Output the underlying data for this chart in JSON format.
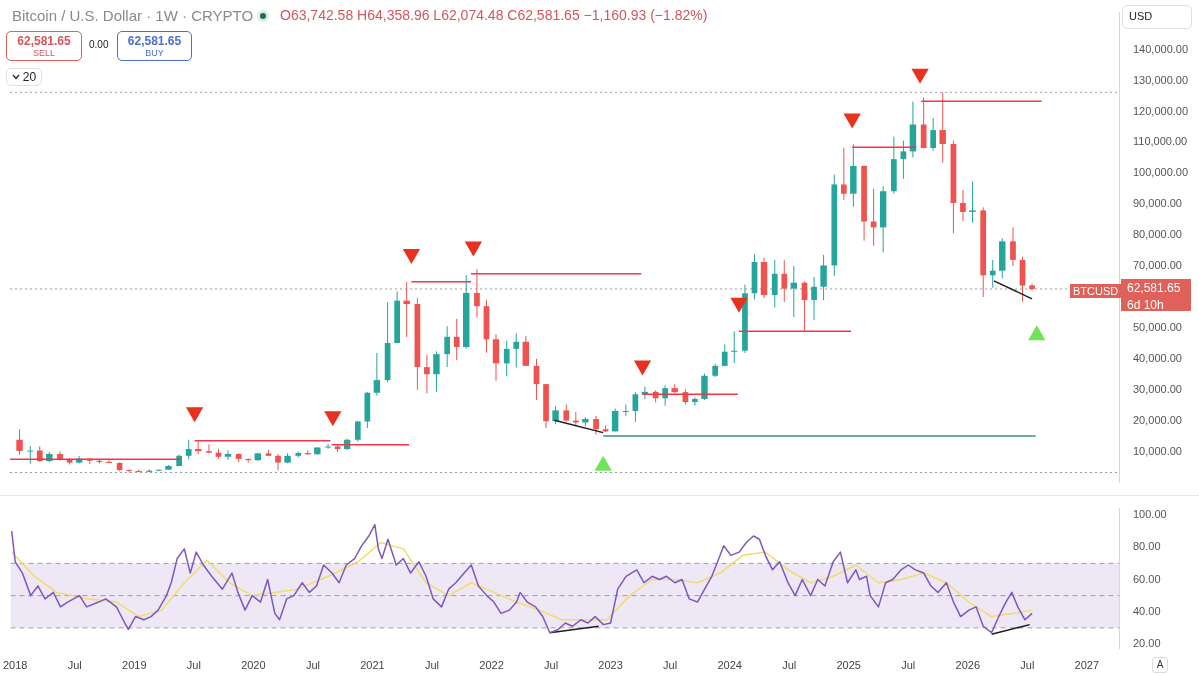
{
  "chart_data": [
    {
      "type": "candlestick",
      "title": "Bitcoin / U.S. Dollar · 1W · CRYPTO",
      "subtitle": "O63,742.58 H64,358.96 L62,074.48 C62,581.65 −1,160.93 (−1.82%)",
      "annotations": [
        "62,581.65",
        "SELL",
        "0.00",
        "62,581.65",
        "BUY",
        "20",
        "USD",
        "BTCUSD",
        "6d 10h"
      ],
      "x": [
        2018.04,
        2018.13,
        2018.21,
        2018.29,
        2018.38,
        2018.46,
        2018.54,
        2018.63,
        2018.71,
        2018.79,
        2018.88,
        2018.96,
        2019.04,
        2019.13,
        2019.21,
        2019.29,
        2019.38,
        2019.46,
        2019.54,
        2019.63,
        2019.71,
        2019.79,
        2019.88,
        2019.96,
        2020.04,
        2020.13,
        2020.21,
        2020.29,
        2020.38,
        2020.46,
        2020.54,
        2020.63,
        2020.71,
        2020.79,
        2020.88,
        2020.96,
        2021.04,
        2021.13,
        2021.21,
        2021.29,
        2021.38,
        2021.46,
        2021.54,
        2021.63,
        2021.71,
        2021.79,
        2021.88,
        2021.96,
        2022.04,
        2022.13,
        2022.21,
        2022.29,
        2022.38,
        2022.46,
        2022.54,
        2022.63,
        2022.71,
        2022.79,
        2022.88,
        2022.96,
        2023.04,
        2023.13,
        2023.21,
        2023.29,
        2023.38,
        2023.46,
        2023.54,
        2023.63,
        2023.71,
        2023.79,
        2023.88,
        2023.96,
        2024.04,
        2024.13,
        2024.21,
        2024.29,
        2024.38,
        2024.46,
        2024.54,
        2024.63,
        2024.71,
        2024.79,
        2024.88,
        2024.96,
        2025.04,
        2025.13,
        2025.21,
        2025.29,
        2025.38,
        2025.46,
        2025.54,
        2025.63,
        2025.71,
        2025.79,
        2025.88,
        2025.96,
        2026.04,
        2026.13,
        2026.21,
        2026.29,
        2026.38,
        2026.46,
        2026.54
      ],
      "ohlc": [
        [
          13800,
          17200,
          9000,
          10200
        ],
        [
          10200,
          11800,
          6000,
          10300
        ],
        [
          10300,
          11700,
          6600,
          6900
        ],
        [
          6900,
          9800,
          6500,
          9200
        ],
        [
          9200,
          10000,
          7100,
          7500
        ],
        [
          7500,
          7800,
          5800,
          6400
        ],
        [
          6400,
          8500,
          6100,
          7700
        ],
        [
          7700,
          7800,
          5900,
          7000
        ],
        [
          7000,
          7400,
          6100,
          6600
        ],
        [
          6600,
          7600,
          6200,
          6300
        ],
        [
          6300,
          6500,
          3600,
          4000
        ],
        [
          4000,
          4200,
          3200,
          3700
        ],
        [
          3700,
          4100,
          3400,
          3400
        ],
        [
          3400,
          4200,
          3400,
          3800
        ],
        [
          3800,
          4200,
          3700,
          4100
        ],
        [
          4100,
          5600,
          4100,
          5300
        ],
        [
          5300,
          9000,
          5300,
          8600
        ],
        [
          8600,
          13800,
          7500,
          10800
        ],
        [
          10800,
          13200,
          9100,
          10100
        ],
        [
          10100,
          12300,
          9400,
          9600
        ],
        [
          9600,
          10900,
          7700,
          8300
        ],
        [
          8300,
          10400,
          7300,
          9200
        ],
        [
          9200,
          9500,
          6500,
          7600
        ],
        [
          7600,
          7700,
          6400,
          7200
        ],
        [
          7200,
          9600,
          6900,
          9400
        ],
        [
          9400,
          10500,
          8500,
          8600
        ],
        [
          8600,
          9200,
          3900,
          6400
        ],
        [
          6400,
          9400,
          6200,
          8600
        ],
        [
          8600,
          10000,
          8100,
          9500
        ],
        [
          9500,
          10400,
          8900,
          9100
        ],
        [
          9100,
          11400,
          8900,
          11300
        ],
        [
          11300,
          12500,
          10900,
          11600
        ],
        [
          11600,
          12100,
          9900,
          10800
        ],
        [
          10800,
          14100,
          10400,
          13800
        ],
        [
          13800,
          19900,
          13200,
          19700
        ],
        [
          19700,
          29300,
          17600,
          29000
        ],
        [
          29000,
          41900,
          28100,
          33100
        ],
        [
          33100,
          58300,
          32400,
          45100
        ],
        [
          45100,
          61800,
          45000,
          58800
        ],
        [
          58800,
          64900,
          47000,
          57700
        ],
        [
          57700,
          59600,
          30000,
          37300
        ],
        [
          37300,
          41300,
          28800,
          35000
        ],
        [
          35000,
          42400,
          29300,
          41500
        ],
        [
          41500,
          50500,
          37300,
          47100
        ],
        [
          47100,
          52900,
          39600,
          43800
        ],
        [
          43800,
          67000,
          43300,
          61300
        ],
        [
          61300,
          69000,
          53300,
          57000
        ],
        [
          57000,
          59100,
          42000,
          46300
        ],
        [
          46300,
          47900,
          32900,
          38500
        ],
        [
          38500,
          45800,
          34300,
          43200
        ],
        [
          43200,
          48200,
          37200,
          45500
        ],
        [
          45500,
          47400,
          37700,
          37700
        ],
        [
          37700,
          40000,
          26700,
          31800
        ],
        [
          31800,
          31900,
          17600,
          19800
        ],
        [
          19800,
          24700,
          18800,
          23300
        ],
        [
          23300,
          25200,
          19600,
          20000
        ],
        [
          20000,
          22800,
          18100,
          19400
        ],
        [
          19400,
          21100,
          18200,
          20500
        ],
        [
          20500,
          21500,
          15500,
          17200
        ],
        [
          17200,
          18400,
          16300,
          16500
        ],
        [
          16500,
          23900,
          16500,
          23100
        ],
        [
          23100,
          25200,
          21400,
          23100
        ],
        [
          23100,
          29200,
          19600,
          28500
        ],
        [
          28500,
          31000,
          26900,
          29300
        ],
        [
          29300,
          29800,
          25900,
          27200
        ],
        [
          27200,
          31400,
          24800,
          30500
        ],
        [
          30500,
          31800,
          28900,
          29200
        ],
        [
          29200,
          30200,
          25200,
          26000
        ],
        [
          26000,
          27500,
          24900,
          27000
        ],
        [
          27000,
          35200,
          26600,
          34500
        ],
        [
          34500,
          38400,
          34100,
          37700
        ],
        [
          37700,
          44700,
          37600,
          42300
        ],
        [
          42300,
          48900,
          38600,
          42600
        ],
        [
          42600,
          64000,
          41900,
          61200
        ],
        [
          61200,
          73800,
          59200,
          71300
        ],
        [
          71300,
          72700,
          59600,
          60600
        ],
        [
          60600,
          71900,
          56600,
          67500
        ],
        [
          67500,
          71900,
          58400,
          62700
        ],
        [
          62700,
          70000,
          53500,
          64600
        ],
        [
          64600,
          65000,
          49100,
          59000
        ],
        [
          59000,
          66500,
          52600,
          63300
        ],
        [
          63300,
          73600,
          58900,
          70200
        ],
        [
          70200,
          99600,
          66800,
          96400
        ],
        [
          96400,
          108300,
          91400,
          93400
        ],
        [
          93400,
          109400,
          89200,
          102400
        ],
        [
          102400,
          102500,
          78200,
          84400
        ],
        [
          84400,
          95000,
          76600,
          82500
        ],
        [
          82500,
          95800,
          74400,
          94200
        ],
        [
          94200,
          111900,
          93400,
          104600
        ],
        [
          104600,
          110600,
          98200,
          107100
        ],
        [
          107100,
          123200,
          105100,
          115800
        ],
        [
          115800,
          124500,
          108000,
          108200
        ],
        [
          108200,
          117900,
          107300,
          114000
        ],
        [
          114000,
          126200,
          103500,
          109500
        ],
        [
          109500,
          110600,
          80600,
          90400
        ],
        [
          90400,
          94600,
          84500,
          87500
        ],
        [
          87500,
          97400,
          84000,
          88000
        ],
        [
          88000,
          89000,
          60000,
          67000
        ],
        [
          67000,
          72000,
          63000,
          68500
        ],
        [
          68500,
          79000,
          66000,
          78000
        ],
        [
          78000,
          82500,
          70000,
          72000
        ],
        [
          72000,
          73000,
          58500,
          63700
        ],
        [
          63742.58,
          64358.96,
          62074.48,
          62581.65
        ]
      ],
      "colors": [
        "#ef5350",
        "#26a69a",
        "#ef5350",
        "#26a69a",
        "#ef5350",
        "#ef5350",
        "#26a69a",
        "#ef5350",
        "#ef5350",
        "#ef5350",
        "#ef5350",
        "#ef5350",
        "#ef5350",
        "#26a69a",
        "#26a69a",
        "#26a69a",
        "#26a69a",
        "#26a69a",
        "#ef5350",
        "#ef5350",
        "#ef5350",
        "#26a69a",
        "#ef5350",
        "#ef5350",
        "#26a69a",
        "#ef5350",
        "#ef5350",
        "#26a69a",
        "#26a69a",
        "#ef5350",
        "#26a69a",
        "#26a69a",
        "#ef5350",
        "#26a69a",
        "#26a69a",
        "#26a69a",
        "#26a69a",
        "#26a69a",
        "#26a69a",
        "#ef5350",
        "#ef5350",
        "#ef5350",
        "#26a69a",
        "#26a69a",
        "#ef5350",
        "#26a69a",
        "#ef5350",
        "#ef5350",
        "#ef5350",
        "#26a69a",
        "#26a69a",
        "#ef5350",
        "#ef5350",
        "#ef5350",
        "#26a69a",
        "#ef5350",
        "#ef5350",
        "#26a69a",
        "#ef5350",
        "#ef5350",
        "#26a69a",
        "#26a69a",
        "#26a69a",
        "#26a69a",
        "#ef5350",
        "#26a69a",
        "#ef5350",
        "#ef5350",
        "#26a69a",
        "#26a69a",
        "#26a69a",
        "#26a69a",
        "#26a69a",
        "#26a69a",
        "#26a69a",
        "#ef5350",
        "#26a69a",
        "#ef5350",
        "#26a69a",
        "#ef5350",
        "#26a69a",
        "#26a69a",
        "#26a69a",
        "#ef5350",
        "#26a69a",
        "#ef5350",
        "#ef5350",
        "#26a69a",
        "#26a69a",
        "#26a69a",
        "#26a69a",
        "#ef5350",
        "#26a69a",
        "#ef5350",
        "#ef5350",
        "#ef5350",
        "#26a69a",
        "#ef5350",
        "#26a69a",
        "#26a69a",
        "#ef5350",
        "#ef5350",
        "#ef5350"
      ],
      "series": [
        {
          "type": "line",
          "color": "#f23645",
          "x": [
            2017.96,
            2019.39
          ],
          "values": [
            7500,
            7500
          ]
        },
        {
          "type": "line",
          "color": "#f23645",
          "x": [
            2019.51,
            2020.65
          ],
          "values": [
            13500,
            13500
          ]
        },
        {
          "type": "line",
          "color": "#f23645",
          "x": [
            2020.66,
            2021.31
          ],
          "values": [
            12200,
            12200
          ]
        },
        {
          "type": "line",
          "color": "#f23645",
          "x": [
            2021.33,
            2021.83
          ],
          "values": [
            64900,
            64900
          ]
        },
        {
          "type": "line",
          "color": "#f23645",
          "x": [
            2021.83,
            2023.26
          ],
          "values": [
            67500,
            67500
          ]
        },
        {
          "type": "line",
          "color": "#f23645",
          "x": [
            2023.27,
            2024.07
          ],
          "values": [
            28500,
            28500
          ]
        },
        {
          "type": "line",
          "color": "#f23645",
          "x": [
            2024.08,
            2025.02
          ],
          "values": [
            48900,
            48900
          ]
        },
        {
          "type": "line",
          "color": "#f23645",
          "x": [
            2025.03,
            2025.57
          ],
          "values": [
            108400,
            108400
          ]
        },
        {
          "type": "line",
          "color": "#f23645",
          "x": [
            2025.61,
            2026.62
          ],
          "values": [
            123300,
            123300
          ]
        },
        {
          "type": "line",
          "color": "#3a8f7f",
          "x": [
            2022.94,
            2026.57
          ],
          "values": [
            15000,
            15000
          ]
        },
        {
          "type": "line",
          "color": "#1e1e1e",
          "x": [
            2022.53,
            2022.94
          ],
          "values": [
            20100,
            16100
          ]
        },
        {
          "type": "line",
          "color": "#1e1e1e",
          "x": [
            2026.22,
            2026.54
          ],
          "values": [
            65200,
            59400
          ]
        },
        {
          "type": "scatter",
          "marker": "triangle",
          "color": "#e8321e",
          "x": [
            2019.51,
            2020.67,
            2021.33,
            2021.85,
            2023.27,
            2024.08,
            2025.03,
            2025.6
          ],
          "values": [
            22700,
            21400,
            73900,
            76300,
            37800,
            58100,
            117700,
            132200
          ]
        },
        {
          "type": "scatter",
          "marker": "triangle",
          "color": "#6fe35a",
          "x": [
            2022.94,
            2026.58
          ],
          "values": [
            5400,
            47600
          ]
        }
      ],
      "ref_lines": [
        {
          "axis": "y",
          "value": 126200,
          "color": "#9e9e9e",
          "line_style": "dotted"
        },
        {
          "axis": "y",
          "value": 62581.65,
          "label": "62,581.65",
          "color": "#9e9e9e",
          "line_style": "dotted"
        },
        {
          "axis": "y",
          "value": 3200,
          "color": "#9e9e9e",
          "line_style": "dotted"
        }
      ],
      "xlim": [
        2017.96,
        2027.27
      ],
      "ylim": [
        0,
        152000
      ],
      "yticks": [
        {
          "value": 10000,
          "label": "10,000.00"
        },
        {
          "value": 20000,
          "label": "20,000.00"
        },
        {
          "value": 30000,
          "label": "30,000.00"
        },
        {
          "value": 40000,
          "label": "40,000.00"
        },
        {
          "value": 50000,
          "label": "50,000.00"
        },
        {
          "value": 70000,
          "label": "70,000.00"
        },
        {
          "value": 80000,
          "label": "80,000.00"
        },
        {
          "value": 90000,
          "label": "90,000.00"
        },
        {
          "value": 100000,
          "label": "100,000.00"
        },
        {
          "value": 110000,
          "label": "110,000.00"
        },
        {
          "value": 120000,
          "label": "120,000.00"
        },
        {
          "value": 130000,
          "label": "130,000.00"
        },
        {
          "value": 140000,
          "label": "140,000.00"
        }
      ],
      "tick_labels": "y"
    },
    {
      "type": "line",
      "annotations": [
        "A"
      ],
      "series": [
        {
          "color": "#7e57c2",
          "x": [
            2017.97,
            2018,
            2018.06,
            2018.13,
            2018.19,
            2018.25,
            2018.32,
            2018.38,
            2018.44,
            2018.54,
            2018.6,
            2018.7,
            2018.76,
            2018.85,
            2018.92,
            2018.95,
            2019.01,
            2019.08,
            2019.14,
            2019.2,
            2019.27,
            2019.31,
            2019.36,
            2019.42,
            2019.47,
            2019.52,
            2019.58,
            2019.65,
            2019.74,
            2019.82,
            2019.87,
            2019.93,
            2019.99,
            2020.06,
            2020.12,
            2020.18,
            2020.22,
            2020.28,
            2020.34,
            2020.41,
            2020.47,
            2020.53,
            2020.59,
            2020.66,
            2020.72,
            2020.78,
            2020.85,
            2020.91,
            2020.97,
            2021.02,
            2021.05,
            2021.08,
            2021.13,
            2021.2,
            2021.26,
            2021.32,
            2021.39,
            2021.45,
            2021.51,
            2021.58,
            2021.64,
            2021.7,
            2021.77,
            2021.83,
            2021.89,
            2021.96,
            2022.02,
            2022.08,
            2022.15,
            2022.21,
            2022.24,
            2022.3,
            2022.37,
            2022.43,
            2022.49,
            2022.56,
            2022.62,
            2022.68,
            2022.75,
            2022.81,
            2022.87,
            2022.94,
            2023,
            2023.06,
            2023.13,
            2023.22,
            2023.28,
            2023.35,
            2023.41,
            2023.47,
            2023.54,
            2023.6,
            2023.66,
            2023.73,
            2023.79,
            2023.85,
            2023.92,
            2023.95,
            2024.01,
            2024.08,
            2024.14,
            2024.2,
            2024.25,
            2024.3,
            2024.36,
            2024.42,
            2024.49,
            2024.55,
            2024.61,
            2024.68,
            2024.74,
            2024.8,
            2024.87,
            2024.93,
            2024.99,
            2025.06,
            2025.09,
            2025.15,
            2025.18,
            2025.25,
            2025.31,
            2025.37,
            2025.44,
            2025.5,
            2025.56,
            2025.63,
            2025.69,
            2025.75,
            2025.82,
            2025.88,
            2025.94,
            2026.01,
            2026.07,
            2026.13,
            2026.2,
            2026.26,
            2026.32,
            2026.37,
            2026.42,
            2026.48,
            2026.54
          ],
          "values": [
            90,
            71,
            64,
            50,
            56,
            48,
            52,
            43,
            46,
            50,
            43,
            46,
            48,
            43,
            33,
            29,
            37,
            35,
            37,
            41,
            50,
            58,
            73,
            79,
            64,
            77,
            69,
            62,
            54,
            64,
            52,
            41,
            50,
            46,
            60,
            39,
            35,
            48,
            50,
            58,
            52,
            56,
            69,
            64,
            58,
            69,
            73,
            81,
            87,
            94,
            79,
            73,
            85,
            69,
            73,
            64,
            71,
            62,
            48,
            43,
            54,
            58,
            64,
            69,
            56,
            50,
            46,
            39,
            41,
            46,
            52,
            46,
            43,
            37,
            27,
            29,
            33,
            31,
            35,
            33,
            37,
            32,
            33,
            54,
            62,
            66,
            58,
            62,
            60,
            62,
            58,
            60,
            48,
            46,
            54,
            62,
            75,
            81,
            75,
            77,
            83,
            87,
            85,
            75,
            66,
            71,
            58,
            50,
            60,
            50,
            60,
            56,
            71,
            77,
            58,
            66,
            60,
            62,
            50,
            43,
            58,
            60,
            66,
            69,
            66,
            64,
            56,
            52,
            58,
            46,
            37,
            41,
            43,
            31,
            27,
            37,
            46,
            52,
            43,
            35,
            39
          ]
        },
        {
          "color": "#f2dc6b",
          "x": [
            2017.97,
            2018.16,
            2018.35,
            2018.6,
            2018.85,
            2019.04,
            2019.23,
            2019.42,
            2019.61,
            2019.8,
            2019.99,
            2020.18,
            2020.37,
            2020.63,
            2020.88,
            2021.07,
            2021.26,
            2021.45,
            2021.64,
            2021.83,
            2022.02,
            2022.21,
            2022.4,
            2022.59,
            2022.78,
            2022.97,
            2023.16,
            2023.35,
            2023.54,
            2023.73,
            2023.92,
            2024.11,
            2024.3,
            2024.49,
            2024.68,
            2024.87,
            2025.06,
            2025.25,
            2025.44,
            2025.63,
            2025.82,
            2026.01,
            2026.2,
            2026.39,
            2026.54
          ],
          "values": [
            77,
            62,
            52,
            48,
            46,
            37,
            41,
            58,
            72,
            58,
            50,
            52,
            54,
            62,
            71,
            83,
            79,
            58,
            50,
            58,
            52,
            46,
            41,
            35,
            35,
            35,
            50,
            60,
            60,
            58,
            64,
            75,
            77,
            66,
            58,
            62,
            69,
            58,
            60,
            64,
            58,
            46,
            37,
            39,
            41
          ]
        },
        {
          "color": "#1e1e1e",
          "x": [
            2022.49,
            2022.9
          ],
          "values": [
            27,
            31
          ]
        },
        {
          "color": "#1e1e1e",
          "x": [
            2026.2,
            2026.52
          ],
          "values": [
            26,
            32
          ]
        }
      ],
      "bands": [
        {
          "axis": "y",
          "from": 30,
          "to": 70,
          "color": "#ede7f6"
        }
      ],
      "ref_lines": [
        {
          "axis": "y",
          "value": 70,
          "color": "#9e9e9e",
          "line_style": "dashed"
        },
        {
          "axis": "y",
          "value": 50,
          "color": "#9e9e9e",
          "line_style": "dashed"
        },
        {
          "axis": "y",
          "value": 30,
          "color": "#9e9e9e",
          "line_style": "dashed"
        }
      ],
      "xlim": [
        2017.96,
        2027.27
      ],
      "xticks": [
        {
          "value": 2018,
          "label": "2018"
        },
        {
          "value": 2018.5,
          "label": "Jul"
        },
        {
          "value": 2019,
          "label": "2019"
        },
        {
          "value": 2019.5,
          "label": "Jul"
        },
        {
          "value": 2020,
          "label": "2020"
        },
        {
          "value": 2020.5,
          "label": "Jul"
        },
        {
          "value": 2021,
          "label": "2021"
        },
        {
          "value": 2021.5,
          "label": "Jul"
        },
        {
          "value": 2022,
          "label": "2022"
        },
        {
          "value": 2022.5,
          "label": "Jul"
        },
        {
          "value": 2023,
          "label": "2023"
        },
        {
          "value": 2023.5,
          "label": "Jul"
        },
        {
          "value": 2024,
          "label": "2024"
        },
        {
          "value": 2024.5,
          "label": "Jul"
        },
        {
          "value": 2025,
          "label": "2025"
        },
        {
          "value": 2025.5,
          "label": "Jul"
        },
        {
          "value": 2026,
          "label": "2026"
        },
        {
          "value": 2026.5,
          "label": "Jul"
        },
        {
          "value": 2027,
          "label": "2027"
        }
      ],
      "ylim": [
        17,
        104
      ],
      "yticks": [
        {
          "value": 20,
          "label": "20.00"
        },
        {
          "value": 40,
          "label": "40.00"
        },
        {
          "value": 60,
          "label": "60.00"
        },
        {
          "value": 80,
          "label": "80.00"
        },
        {
          "value": 100,
          "label": "100.00"
        }
      ]
    }
  ]
}
